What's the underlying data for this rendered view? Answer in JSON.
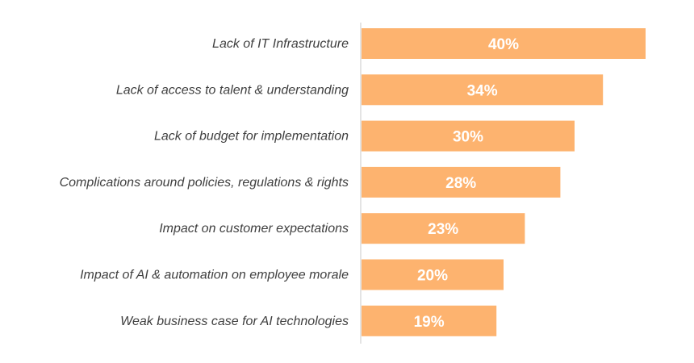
{
  "chart_data": {
    "type": "bar",
    "orientation": "horizontal",
    "categories": [
      "Lack of IT Infrastructure",
      "Lack of access to talent & understanding",
      "Lack of budget for implementation",
      "Complications around policies, regulations & rights",
      "Impact on customer expectations",
      "Impact of AI & automation on employee morale",
      "Weak business case for AI technologies"
    ],
    "values": [
      40,
      34,
      30,
      28,
      23,
      20,
      19
    ],
    "value_labels": [
      "40%",
      "34%",
      "30%",
      "28%",
      "23%",
      "20%",
      "19%"
    ],
    "bar_color": "#FDB36F",
    "value_label_color": "#FFFFFF",
    "xlim": [
      0,
      40
    ],
    "grid": false,
    "title": "",
    "xlabel": "",
    "ylabel": ""
  }
}
